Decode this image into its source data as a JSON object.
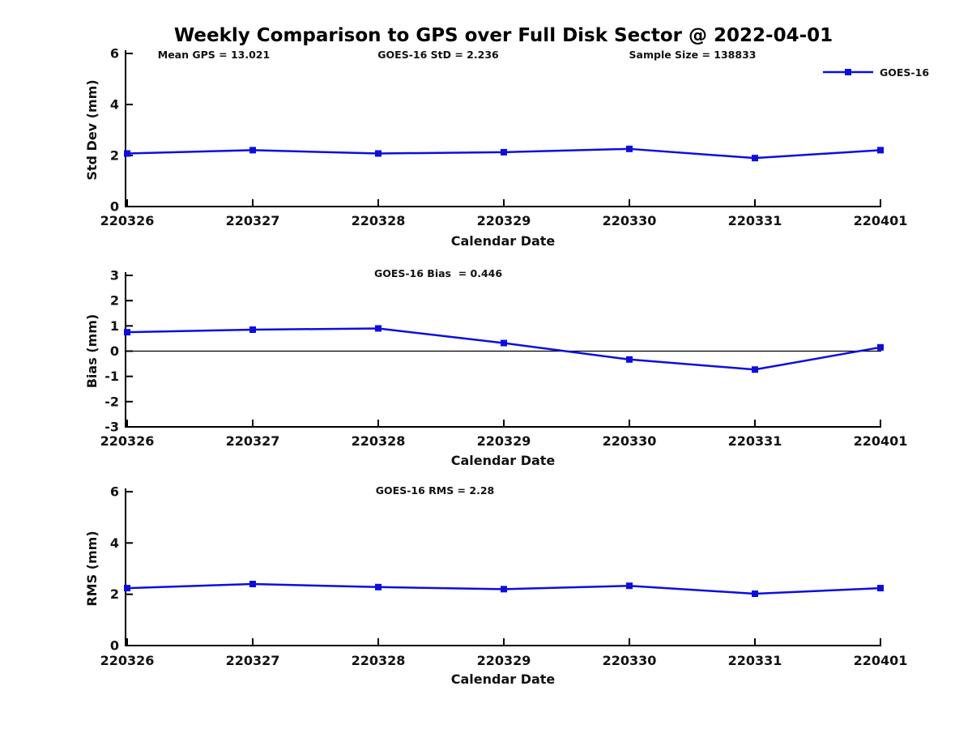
{
  "title": "Weekly Comparison to GPS over Full Disk Sector @ 2022-04-01",
  "legend": {
    "label": "GOES-16"
  },
  "colors": {
    "line": "#0d0de0",
    "marker": "#0d0de0",
    "text": "#111111",
    "axis": "#000000",
    "zero_line": "#000000"
  },
  "chart_data": [
    {
      "type": "line",
      "name": "std-dev",
      "annotations": [
        "Mean GPS = 13.021",
        "GOES-16 StD = 2.236",
        "Sample Size = 138833"
      ],
      "categories": [
        "220326",
        "220327",
        "220328",
        "220329",
        "220330",
        "220331",
        "220401"
      ],
      "series": [
        {
          "name": "GOES-16",
          "values": [
            2.08,
            2.21,
            2.08,
            2.13,
            2.26,
            1.9,
            2.21
          ]
        }
      ],
      "xlabel": "Calendar Date",
      "ylabel": "Std Dev (mm)",
      "ylim": [
        0,
        6
      ],
      "yticks": [
        0,
        2,
        4,
        6
      ],
      "zero_line": false,
      "legend": "GOES-16",
      "legend_position": "top-right",
      "grid": false
    },
    {
      "type": "line",
      "name": "bias",
      "annotations": [
        "GOES-16 Bias  = 0.446"
      ],
      "categories": [
        "220326",
        "220327",
        "220328",
        "220329",
        "220330",
        "220331",
        "220401"
      ],
      "series": [
        {
          "name": "GOES-16",
          "values": [
            0.75,
            0.85,
            0.9,
            0.32,
            -0.33,
            -0.73,
            0.15
          ]
        }
      ],
      "xlabel": "Calendar Date",
      "ylabel": "Bias (mm)",
      "ylim": [
        -3,
        3
      ],
      "yticks": [
        -3,
        -2,
        -1,
        0,
        1,
        2,
        3
      ],
      "zero_line": true,
      "grid": false
    },
    {
      "type": "line",
      "name": "rms",
      "annotations": [
        "GOES-16 RMS = 2.28"
      ],
      "categories": [
        "220326",
        "220327",
        "220328",
        "220329",
        "220330",
        "220331",
        "220401"
      ],
      "series": [
        {
          "name": "GOES-16",
          "values": [
            2.24,
            2.4,
            2.28,
            2.2,
            2.33,
            2.02,
            2.24
          ]
        }
      ],
      "xlabel": "Calendar Date",
      "ylabel": "RMS (mm)",
      "ylim": [
        0,
        6
      ],
      "yticks": [
        0,
        2,
        4,
        6
      ],
      "zero_line": false,
      "grid": false
    }
  ]
}
